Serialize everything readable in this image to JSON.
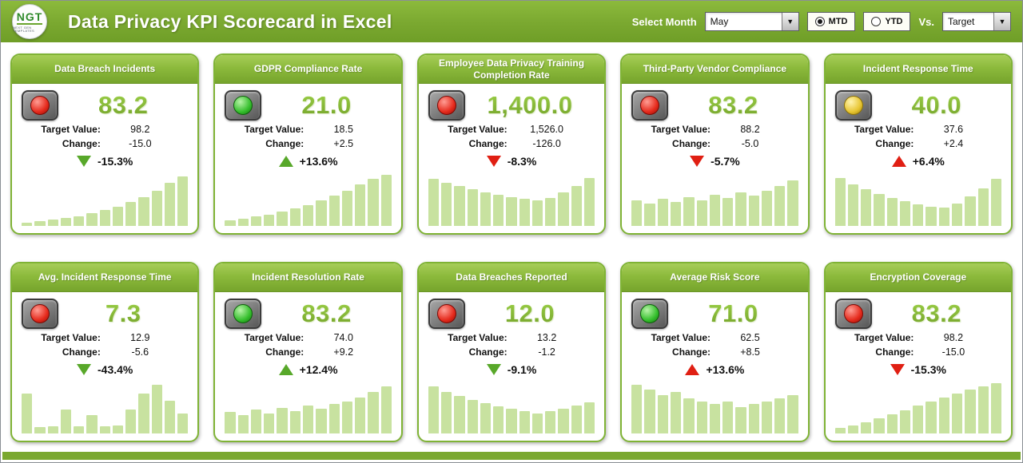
{
  "header": {
    "title": "Data Privacy KPI Scorecard in Excel",
    "logo_text": "NGT",
    "logo_sub": "NEXT GEN TEMPLATES",
    "select_month_label": "Select Month",
    "month_value": "May",
    "mtd_label": "MTD",
    "ytd_label": "YTD",
    "vs_label": "Vs.",
    "vs_value": "Target"
  },
  "labels": {
    "target_value": "Target Value:",
    "change": "Change:"
  },
  "colors": {
    "header_green": "#7aa830",
    "card_border_green": "#7fb335",
    "value_green": "#82bb35",
    "spark_bar": "#c8e2a0",
    "arrow_green": "#58a82a",
    "arrow_red": "#e01f13"
  },
  "cards": [
    {
      "title": "Data Breach Incidents",
      "light": "red",
      "value": "83.2",
      "target": "98.2",
      "change": "-15.0",
      "pct": "-15.3%",
      "arrow": "down",
      "arrow_color": "green",
      "spark": [
        6,
        8,
        11,
        14,
        18,
        23,
        29,
        36,
        44,
        54,
        66,
        80,
        92
      ]
    },
    {
      "title": "GDPR Compliance Rate",
      "light": "green",
      "value": "21.0",
      "target": "18.5",
      "change": "+2.5",
      "pct": "+13.6%",
      "arrow": "up",
      "arrow_color": "green",
      "spark": [
        10,
        13,
        17,
        21,
        26,
        32,
        39,
        47,
        56,
        66,
        77,
        88,
        95
      ]
    },
    {
      "title": "Employee Data Privacy Training Completion Rate",
      "light": "red",
      "value": "1,400.0",
      "target": "1,526.0",
      "change": "-126.0",
      "pct": "-8.3%",
      "arrow": "down",
      "arrow_color": "red",
      "spark": [
        88,
        80,
        74,
        68,
        63,
        58,
        54,
        50,
        47,
        52,
        62,
        75,
        90
      ]
    },
    {
      "title": "Third-Party Vendor Compliance",
      "light": "red",
      "value": "83.2",
      "target": "88.2",
      "change": "-5.0",
      "pct": "-5.7%",
      "arrow": "down",
      "arrow_color": "red",
      "spark": [
        48,
        42,
        50,
        45,
        54,
        48,
        58,
        52,
        62,
        56,
        66,
        74,
        85
      ]
    },
    {
      "title": "Incident Response Time",
      "light": "yellow",
      "value": "40.0",
      "target": "37.6",
      "change": "+2.4",
      "pct": "+6.4%",
      "arrow": "up",
      "arrow_color": "red",
      "spark": [
        90,
        78,
        68,
        60,
        52,
        46,
        40,
        36,
        34,
        42,
        55,
        70,
        88
      ]
    },
    {
      "title": "Avg. Incident Response Time",
      "light": "red",
      "value": "7.3",
      "target": "12.9",
      "change": "-5.6",
      "pct": "-43.4%",
      "arrow": "down",
      "arrow_color": "green",
      "spark": [
        75,
        12,
        14,
        45,
        13,
        35,
        13,
        15,
        45,
        75,
        92,
        62,
        38
      ]
    },
    {
      "title": "Incident Resolution Rate",
      "light": "green",
      "value": "83.2",
      "target": "74.0",
      "change": "+9.2",
      "pct": "+12.4%",
      "arrow": "up",
      "arrow_color": "green",
      "spark": [
        40,
        35,
        45,
        38,
        48,
        42,
        52,
        46,
        56,
        60,
        68,
        78,
        88
      ]
    },
    {
      "title": "Data Breaches Reported",
      "light": "red",
      "value": "12.0",
      "target": "13.2",
      "change": "-1.2",
      "pct": "-9.1%",
      "arrow": "down",
      "arrow_color": "green",
      "spark": [
        88,
        78,
        70,
        63,
        57,
        51,
        46,
        42,
        38,
        42,
        46,
        52,
        58
      ]
    },
    {
      "title": "Average Risk Score",
      "light": "green",
      "value": "71.0",
      "target": "62.5",
      "change": "+8.5",
      "pct": "+13.6%",
      "arrow": "up",
      "arrow_color": "red",
      "spark": [
        92,
        82,
        72,
        78,
        66,
        60,
        55,
        60,
        50,
        55,
        60,
        66,
        72
      ]
    },
    {
      "title": "Encryption Coverage",
      "light": "red",
      "value": "83.2",
      "target": "98.2",
      "change": "-15.0",
      "pct": "-15.3%",
      "arrow": "down",
      "arrow_color": "red",
      "spark": [
        10,
        15,
        21,
        28,
        36,
        44,
        52,
        60,
        68,
        75,
        82,
        89,
        95
      ]
    }
  ]
}
